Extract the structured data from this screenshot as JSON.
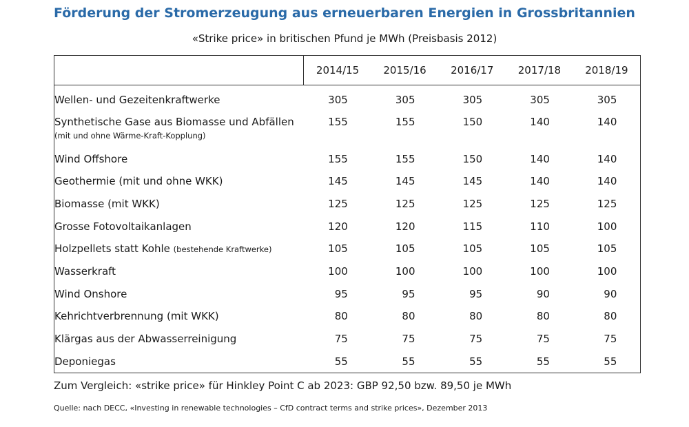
{
  "title": "Förderung der Stromerzeugung aus erneuerbaren Energien in Grossbritannien",
  "subtitle": "«Strike price» in britischen Pfund je MWh (Preisbasis 2012)",
  "chart_data": {
    "type": "table",
    "columns": [
      "2014/15",
      "2015/16",
      "2016/17",
      "2017/18",
      "2018/19"
    ],
    "rows": [
      {
        "label": "Wellen- und Gezeitenkraftwerke",
        "note": "",
        "values": [
          305,
          305,
          305,
          305,
          305
        ]
      },
      {
        "label": "Synthetische Gase aus Biomasse und Abfällen",
        "note": "(mit und ohne Wärme-Kraft-Kopplung)",
        "values": [
          155,
          155,
          150,
          140,
          140
        ]
      },
      {
        "label": "Wind Offshore",
        "note": "",
        "values": [
          155,
          155,
          150,
          140,
          140
        ]
      },
      {
        "label": "Geothermie (mit und ohne WKK)",
        "note": "",
        "values": [
          145,
          145,
          145,
          140,
          140
        ]
      },
      {
        "label": "Biomasse (mit WKK)",
        "note": "",
        "values": [
          125,
          125,
          125,
          125,
          125
        ]
      },
      {
        "label": "Grosse Fotovoltaikanlagen",
        "note": "",
        "values": [
          120,
          120,
          115,
          110,
          100
        ]
      },
      {
        "label": "Holzpellets statt Kohle",
        "note": "(bestehende Kraftwerke)",
        "values": [
          105,
          105,
          105,
          105,
          105
        ]
      },
      {
        "label": "Wasserkraft",
        "note": "",
        "values": [
          100,
          100,
          100,
          100,
          100
        ]
      },
      {
        "label": "Wind Onshore",
        "note": "",
        "values": [
          95,
          95,
          95,
          90,
          90
        ]
      },
      {
        "label": "Kehrichtverbrennung (mit WKK)",
        "note": "",
        "values": [
          80,
          80,
          80,
          80,
          80
        ]
      },
      {
        "label": "Klärgas aus der Abwasserreinigung",
        "note": "",
        "values": [
          75,
          75,
          75,
          75,
          75
        ]
      },
      {
        "label": "Deponiegas",
        "note": "",
        "values": [
          55,
          55,
          55,
          55,
          55
        ]
      }
    ]
  },
  "comparison": "Zum Vergleich: «strike price» für Hinkley Point C ab 2023: GBP 92,50 bzw. 89,50 je MWh",
  "source": "Quelle: nach DECC, «Investing in renewable technologies – CfD contract terms and strike prices», Dezember 2013",
  "colors": {
    "title": "#2a6aa8",
    "text": "#1a1a1a",
    "border": "#333333"
  }
}
